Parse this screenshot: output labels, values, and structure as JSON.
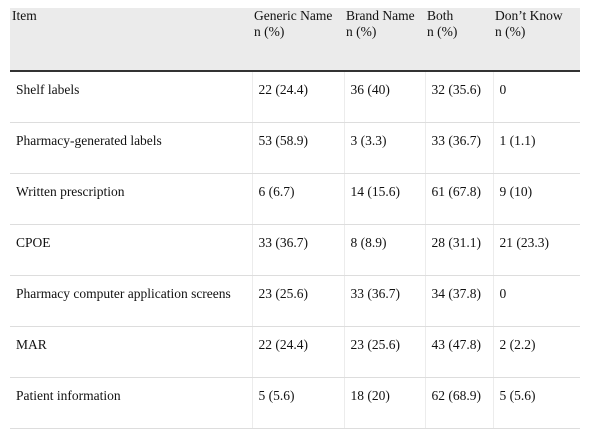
{
  "table": {
    "header": [
      {
        "name": "Item"
      },
      {
        "name": "Generic Name",
        "unit": "n (%)"
      },
      {
        "name": "Brand Name",
        "unit": "n (%)"
      },
      {
        "name": "Both",
        "unit": "n (%)"
      },
      {
        "name": "Don’t Know",
        "unit": "n (%)"
      }
    ],
    "rows": [
      [
        "Shelf labels",
        "22 (24.4)",
        "36 (40)",
        "32 (35.6)",
        "0"
      ],
      [
        "Pharmacy-generated labels",
        "53 (58.9)",
        "3 (3.3)",
        "33 (36.7)",
        "1 (1.1)"
      ],
      [
        "Written prescription",
        "6 (6.7)",
        "14 (15.6)",
        "61 (67.8)",
        "9 (10)"
      ],
      [
        "CPOE",
        "33 (36.7)",
        "8 (8.9)",
        "28 (31.1)",
        "21 (23.3)"
      ],
      [
        "Pharmacy computer application screens",
        "23 (25.6)",
        "33 (36.7)",
        "34 (37.8)",
        "0"
      ],
      [
        "MAR",
        "22 (24.4)",
        "23 (25.6)",
        "43 (47.8)",
        "2 (2.2)"
      ],
      [
        "Patient information",
        "5 (5.6)",
        "18 (20)",
        "62 (68.9)",
        "5 (5.6)"
      ]
    ]
  }
}
